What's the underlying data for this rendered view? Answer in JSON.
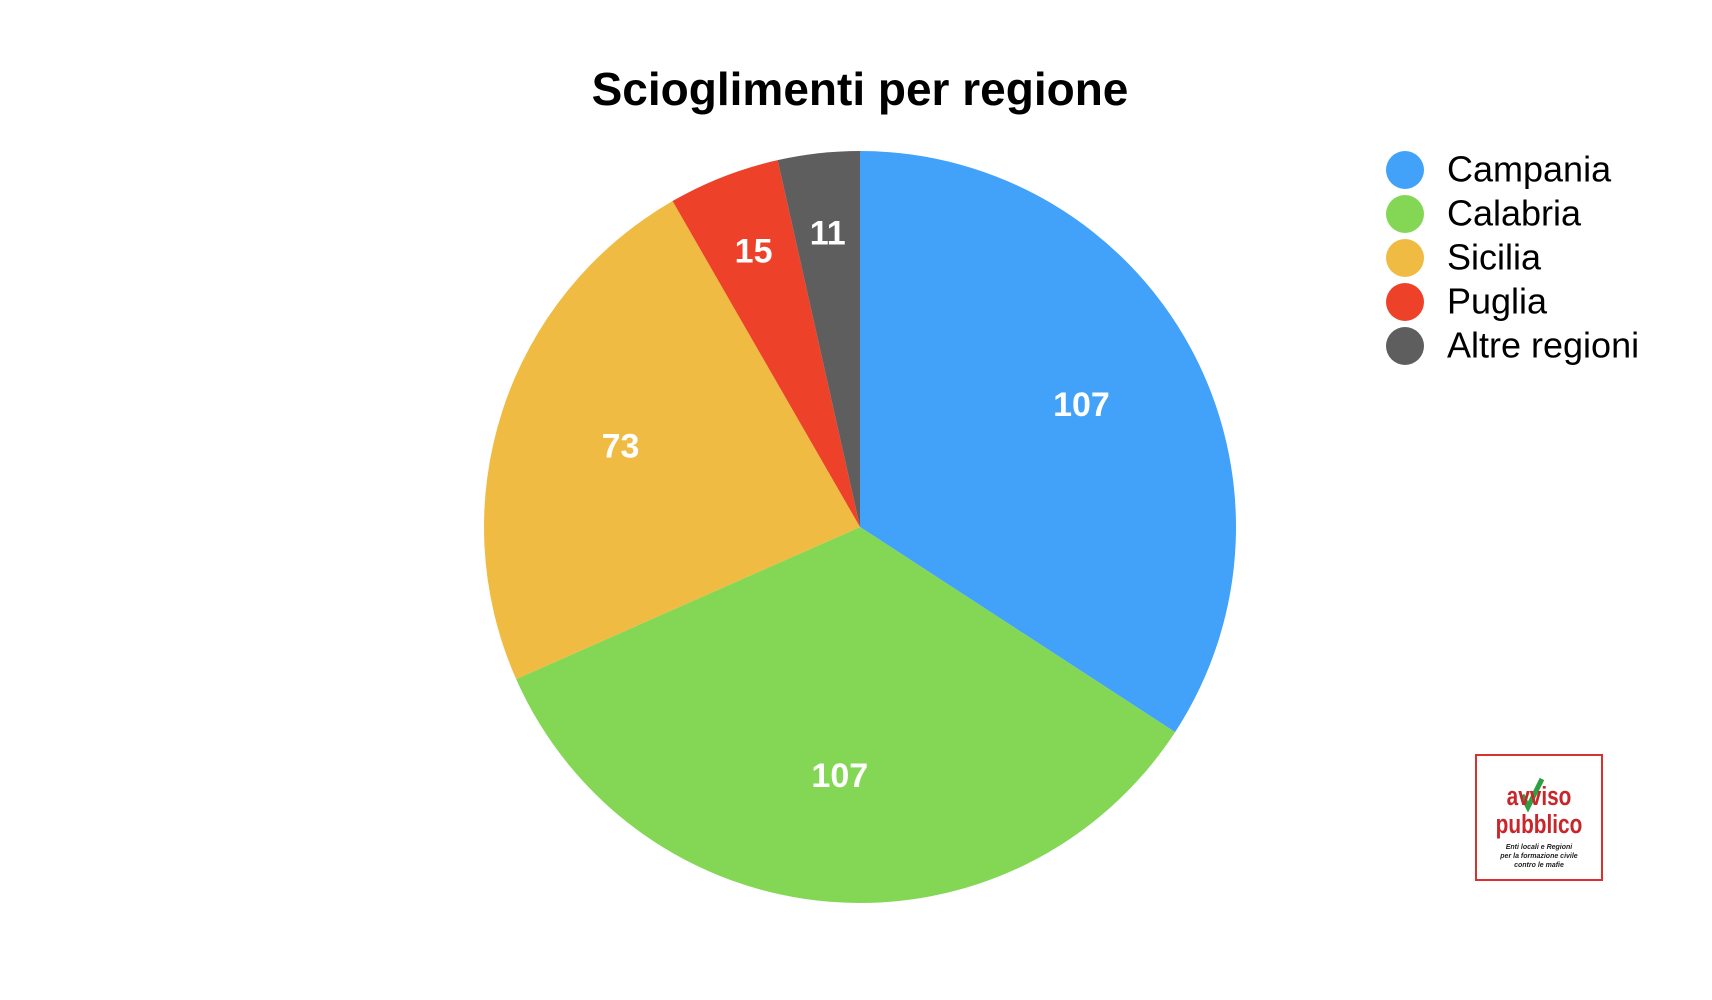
{
  "chart_data": {
    "type": "pie",
    "title": "Scioglimenti per regione",
    "categories": [
      "Campania",
      "Calabria",
      "Sicilia",
      "Puglia",
      "Altre regioni"
    ],
    "values": [
      107,
      107,
      73,
      15,
      11
    ],
    "colors": [
      "#42a1f8",
      "#84d755",
      "#f0bb42",
      "#ed4129",
      "#5e5e5e"
    ],
    "legend": "upper right"
  },
  "logo": {
    "lines": [
      "avviso",
      "pubblico",
      "Enti locali e Regioni",
      "per la formazione civile",
      "contro le mafie"
    ]
  }
}
